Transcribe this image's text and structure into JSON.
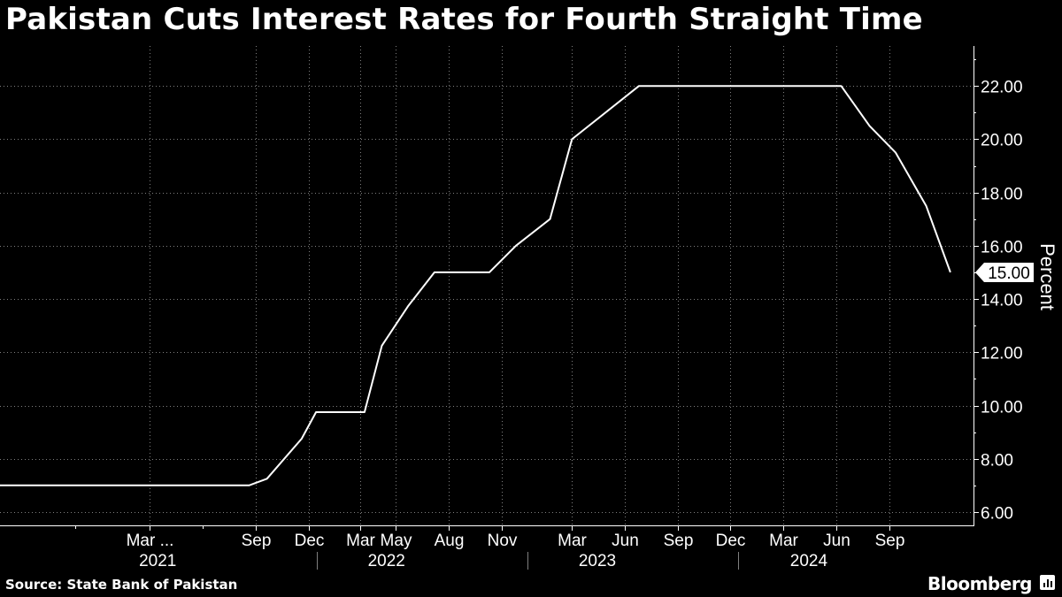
{
  "title": "Pakistan Cuts Interest Rates for Fourth Straight Time",
  "source": "Source: State Bank of Pakistan",
  "brand": "Bloomberg",
  "brand_icon": "bar-chart-icon",
  "colors": {
    "background": "#000000",
    "line": "#ffffff",
    "text": "#ffffff",
    "grid": "#7f7f7f"
  },
  "chart_data": {
    "type": "line",
    "ylabel": "Percent",
    "ylim": [
      5.5,
      23.5
    ],
    "yticks": [
      "6.00",
      "8.00",
      "10.00",
      "12.00",
      "14.00",
      "16.00",
      "18.00",
      "20.00",
      "22.00"
    ],
    "grid": true,
    "y_axis_side": "right",
    "last_value_label": "15.00",
    "x_month_ticks": [
      {
        "label": "Mar ...",
        "date": "2021-03-01"
      },
      {
        "label": "Sep",
        "date": "2021-09-01"
      },
      {
        "label": "Dec",
        "date": "2021-12-01"
      },
      {
        "label": "Mar",
        "date": "2022-03-01"
      },
      {
        "label": "May",
        "date": "2022-05-01"
      },
      {
        "label": "Aug",
        "date": "2022-08-01"
      },
      {
        "label": "Nov",
        "date": "2022-11-01"
      },
      {
        "label": "Mar",
        "date": "2023-03-01"
      },
      {
        "label": "Jun",
        "date": "2023-06-01"
      },
      {
        "label": "Sep",
        "date": "2023-09-01"
      },
      {
        "label": "Dec",
        "date": "2023-12-01"
      },
      {
        "label": "Mar",
        "date": "2024-03-01"
      },
      {
        "label": "Jun",
        "date": "2024-06-01"
      },
      {
        "label": "Sep",
        "date": "2024-09-01"
      }
    ],
    "x_year_labels": [
      {
        "label": "2021",
        "date": "2021-03-15"
      },
      {
        "label": "2022",
        "date": "2022-04-15"
      },
      {
        "label": "2023",
        "date": "2023-04-15"
      },
      {
        "label": "2024",
        "date": "2024-04-15"
      }
    ],
    "x_year_dividers": [
      "2021-12-15",
      "2022-12-15",
      "2023-12-15"
    ],
    "series": [
      {
        "points": [
          {
            "x": "2020-06-15",
            "y": 7.0
          },
          {
            "x": "2021-08-20",
            "y": 7.0
          },
          {
            "x": "2021-09-20",
            "y": 7.25
          },
          {
            "x": "2021-11-19",
            "y": 8.75
          },
          {
            "x": "2021-12-14",
            "y": 9.75
          },
          {
            "x": "2022-03-08",
            "y": 9.75
          },
          {
            "x": "2022-04-07",
            "y": 12.25
          },
          {
            "x": "2022-05-23",
            "y": 13.75
          },
          {
            "x": "2022-07-07",
            "y": 15.0
          },
          {
            "x": "2022-10-10",
            "y": 15.0
          },
          {
            "x": "2022-11-25",
            "y": 16.0
          },
          {
            "x": "2023-01-23",
            "y": 17.0
          },
          {
            "x": "2023-03-02",
            "y": 20.0
          },
          {
            "x": "2023-06-26",
            "y": 22.0
          },
          {
            "x": "2024-06-10",
            "y": 22.0
          },
          {
            "x": "2024-07-29",
            "y": 20.5
          },
          {
            "x": "2024-09-12",
            "y": 19.5
          },
          {
            "x": "2024-11-04",
            "y": 17.5
          },
          {
            "x": "2024-12-16",
            "y": 15.0
          }
        ]
      }
    ]
  }
}
